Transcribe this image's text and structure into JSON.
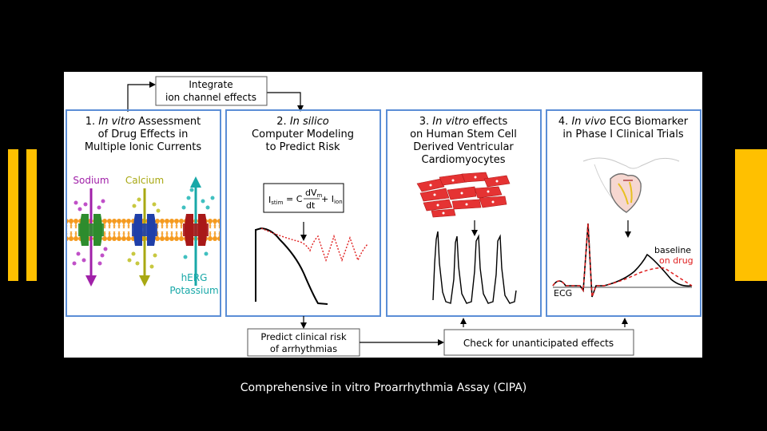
{
  "caption": "Comprehensive in vitro Proarrhythmia Assay (CIPA)",
  "colors": {
    "accent": "#FFC000",
    "panel_border": "#5B8ED6",
    "sodium": "#A020A8",
    "calcium": "#A8A812",
    "herg": "#18A8A8",
    "model_dotted": "#E02020",
    "drug": "#E02020"
  },
  "integrate_box": {
    "line1": "Integrate",
    "line2": "ion channel effects"
  },
  "panels": [
    {
      "num": "1.",
      "italic": "In vitro",
      "line1_rest": " Assessment",
      "line2": "of Drug Effects in",
      "line3": "Multiple Ionic Currents"
    },
    {
      "num": "2.",
      "italic": "In silico",
      "line2": "Computer Modeling",
      "line3": "to Predict Risk"
    },
    {
      "num": "3.",
      "italic": "In vitro",
      "line1_rest": " effects",
      "line2": "on Human Stem Cell",
      "line3": "Derived Ventricular",
      "line4": "Cardiomyocytes"
    },
    {
      "num": "4.",
      "italic": "In vivo",
      "line1_rest": " ECG Biomarker",
      "line2": "in Phase I Clinical Trials"
    }
  ],
  "channels": {
    "sodium": "Sodium",
    "calcium": "Calcium",
    "herg": "hERG",
    "potassium": "Potassium"
  },
  "equation": {
    "lhs_main": "I",
    "lhs_sub": "stim",
    "eq": "= C",
    "frac_num_main": "dV",
    "frac_num_sub": "m",
    "frac_den": "dt",
    "plus": "+ I",
    "rhs_sub": "ion"
  },
  "ecg": {
    "ecg": "ECG",
    "baseline": "baseline",
    "on_drug": "on drug"
  },
  "predict_box": {
    "line1": "Predict clinical risk",
    "line2": "of arrhythmias"
  },
  "check_box": {
    "label": "Check for unanticipated effects"
  }
}
